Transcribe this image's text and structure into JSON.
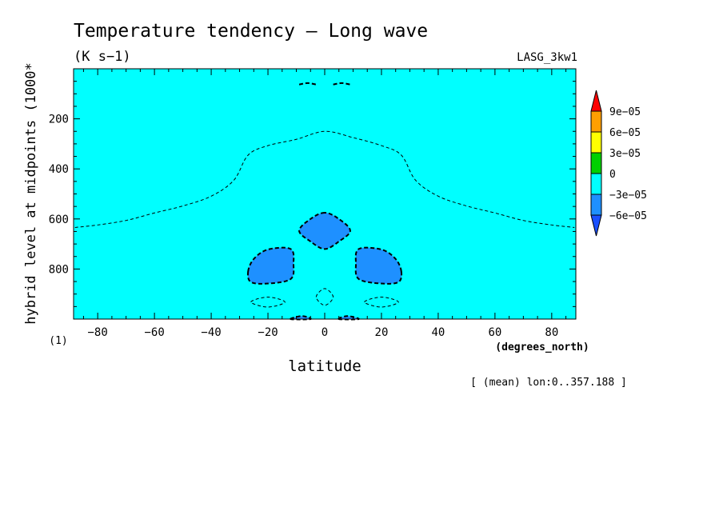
{
  "chart_data": {
    "type": "heatmap",
    "title": "Temperature tendency — Long wave",
    "subtitle": "(K s−1)",
    "dataset": "LASG_3kw1",
    "xlabel": "latitude",
    "x_unit": "(degrees_north)",
    "ylabel": "hybrid level at midpoints (1000*",
    "y_unit": "(1)",
    "footnote": "[ (mean) lon:0..357.188 ]",
    "xlim": [
      -88.5,
      88.5
    ],
    "ylim": [
      1000,
      0
    ],
    "x_ticks": [
      -80,
      -60,
      -40,
      -20,
      0,
      20,
      40,
      60,
      80
    ],
    "x_tick_labels": [
      "−80",
      "−60",
      "−40",
      "−20",
      "0",
      "20",
      "40",
      "60",
      "80"
    ],
    "y_ticks": [
      200,
      400,
      600,
      800
    ],
    "y_tick_labels": [
      "200",
      "400",
      "600",
      "800"
    ],
    "colorbar": {
      "labels": [
        "9e−05",
        "6e−05",
        "3e−05",
        "0",
        "−3e−05",
        "−6e−05"
      ],
      "colors": [
        "#ff0000",
        "#ff9f00",
        "#ffff00",
        "#00d000",
        "#00ffff",
        "#1e90ff",
        "#1a50ff"
      ]
    },
    "background_level": "-3e-05 to 0",
    "contours": [
      {
        "level": -3e-05,
        "style": "thin-dashed",
        "points": [
          [
            -88,
            634
          ],
          [
            -80,
            624
          ],
          [
            -70,
            606
          ],
          [
            -60,
            576
          ],
          [
            -50,
            548
          ],
          [
            -40,
            509
          ],
          [
            -32,
            445
          ],
          [
            -27,
            345
          ],
          [
            -20,
            307
          ],
          [
            -10,
            282
          ],
          [
            0,
            250
          ],
          [
            10,
            275
          ],
          [
            20,
            307
          ],
          [
            27,
            345
          ],
          [
            32,
            445
          ],
          [
            40,
            509
          ],
          [
            50,
            548
          ],
          [
            60,
            576
          ],
          [
            70,
            606
          ],
          [
            80,
            624
          ],
          [
            88,
            634
          ]
        ]
      },
      {
        "level": -6e-05,
        "style": "thick-dashed",
        "fill": "#1e90ff",
        "points": [
          [
            0,
            575
          ],
          [
            -5,
            600
          ],
          [
            -9,
            647
          ],
          [
            -5,
            690
          ],
          [
            0,
            720
          ],
          [
            5,
            690
          ],
          [
            9,
            647
          ],
          [
            5,
            600
          ]
        ]
      },
      {
        "level": -6e-05,
        "style": "thick-dashed",
        "fill": "#1e90ff",
        "points": [
          [
            -27,
            810
          ],
          [
            -25,
            760
          ],
          [
            -20,
            722
          ],
          [
            -12,
            720
          ],
          [
            -11,
            780
          ],
          [
            -12,
            840
          ],
          [
            -20,
            858
          ],
          [
            -26,
            852
          ]
        ]
      },
      {
        "level": -6e-05,
        "style": "thick-dashed",
        "fill": "#1e90ff",
        "points": [
          [
            27,
            810
          ],
          [
            25,
            760
          ],
          [
            20,
            722
          ],
          [
            12,
            720
          ],
          [
            11,
            780
          ],
          [
            12,
            840
          ],
          [
            20,
            858
          ],
          [
            26,
            852
          ]
        ]
      },
      {
        "level": -6e-05,
        "style": "thick-dashed",
        "fill": "#1e90ff",
        "points": [
          [
            -12,
            1000
          ],
          [
            -8,
            988
          ],
          [
            -5,
            1000
          ]
        ]
      },
      {
        "level": -6e-05,
        "style": "thick-dashed",
        "fill": "#1e90ff",
        "points": [
          [
            5,
            1000
          ],
          [
            8,
            988
          ],
          [
            12,
            1000
          ]
        ]
      },
      {
        "level": -6e-05,
        "style": "thick-dashed",
        "points": [
          [
            -9,
            63
          ],
          [
            -6,
            57
          ],
          [
            -3,
            63
          ]
        ]
      },
      {
        "level": -6e-05,
        "style": "thick-dashed",
        "points": [
          [
            3,
            63
          ],
          [
            6,
            57
          ],
          [
            9,
            63
          ]
        ]
      },
      {
        "level": -3e-05,
        "style": "thin-dashed",
        "points": [
          [
            -26,
            932
          ],
          [
            -20,
            912
          ],
          [
            -14,
            932
          ],
          [
            -20,
            952
          ]
        ]
      },
      {
        "level": -3e-05,
        "style": "thin-dashed",
        "points": [
          [
            14,
            932
          ],
          [
            20,
            912
          ],
          [
            26,
            932
          ],
          [
            20,
            952
          ]
        ]
      },
      {
        "level": -3e-05,
        "style": "thin-dashed",
        "points": [
          [
            -3,
            912
          ],
          [
            0,
            878
          ],
          [
            3,
            912
          ],
          [
            0,
            945
          ]
        ]
      }
    ]
  }
}
